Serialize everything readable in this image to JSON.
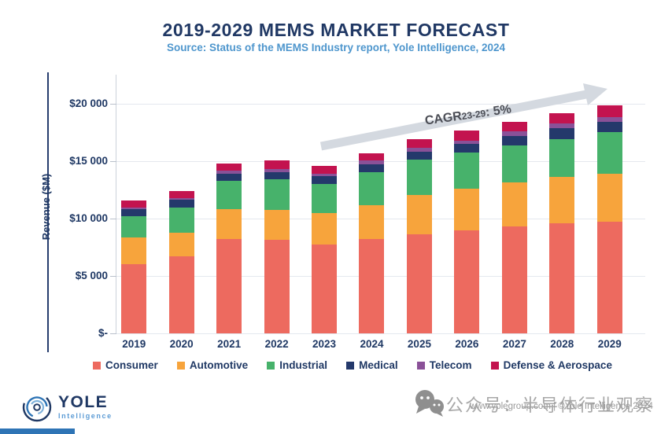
{
  "title": "2019-2029 MEMS MARKET FORECAST",
  "subtitle": "Source: Status of the MEMS Industry report, Yole Intelligence, 2024",
  "annotation": {
    "prefix": "CAGR",
    "range": "23-29",
    "rest": ": 5%"
  },
  "colors": {
    "title_navy": "#203864",
    "subtitle_blue": "#4e96cd",
    "axis_text": "#1f3864",
    "gridline": "#e4e8ee",
    "arrow_gray": "#d4d9e0",
    "annotation_text": "#4b4d55",
    "watermark_gray": "#a7a7a7",
    "footer_blue": "#2e74b5"
  },
  "chart_data": {
    "type": "bar",
    "stacked": true,
    "title": "2019-2029 MEMS MARKET FORECAST",
    "xlabel": "",
    "ylabel": "Revenue ($M)",
    "ylim": [
      0,
      20000
    ],
    "grid": true,
    "legend_position": "bottom",
    "annotation": "CAGR23-29: 5%",
    "yticks": [
      {
        "label": "$20 000",
        "value": 20000
      },
      {
        "label": "$15 000",
        "value": 15000
      },
      {
        "label": "$10 000",
        "value": 10000
      },
      {
        "label": "$5 000",
        "value": 5000
      },
      {
        "label": "$-",
        "value": 0
      }
    ],
    "categories": [
      "2019",
      "2020",
      "2021",
      "2022",
      "2023",
      "2024",
      "2025",
      "2026",
      "2027",
      "2028",
      "2029"
    ],
    "series": [
      {
        "name": "Consumer",
        "color": "#ed6a5f",
        "values": [
          6050,
          6700,
          8250,
          8150,
          7750,
          8200,
          8650,
          8950,
          9300,
          9600,
          9700
        ]
      },
      {
        "name": "Automotive",
        "color": "#f7a43c",
        "values": [
          2300,
          2100,
          2550,
          2600,
          2700,
          2950,
          3400,
          3650,
          3850,
          4000,
          4180
        ]
      },
      {
        "name": "Industrial",
        "color": "#47b26b",
        "values": [
          1850,
          2150,
          2500,
          2700,
          2600,
          2900,
          3100,
          3150,
          3250,
          3350,
          3630
        ]
      },
      {
        "name": "Medical",
        "color": "#24396b",
        "values": [
          650,
          700,
          600,
          570,
          620,
          700,
          650,
          750,
          800,
          900,
          900
        ]
      },
      {
        "name": "Telecom",
        "color": "#8a5198",
        "values": [
          100,
          120,
          280,
          290,
          230,
          300,
          350,
          300,
          390,
          410,
          460
        ]
      },
      {
        "name": "Defense & Aerospace",
        "color": "#c3134f",
        "values": [
          650,
          600,
          600,
          730,
          690,
          630,
          750,
          850,
          850,
          920,
          990
        ]
      }
    ],
    "totals": [
      11600,
      12370,
      14780,
      15040,
      14590,
      15680,
      16900,
      17650,
      18440,
      19180,
      19860
    ]
  },
  "logo": {
    "name": "YOLE",
    "sub": "Intelligence"
  },
  "watermark": {
    "wechat_text": "公众号：半导体行业观察",
    "copyright": "www.yolegroup.com | ©Yole Intelligence 2024"
  }
}
